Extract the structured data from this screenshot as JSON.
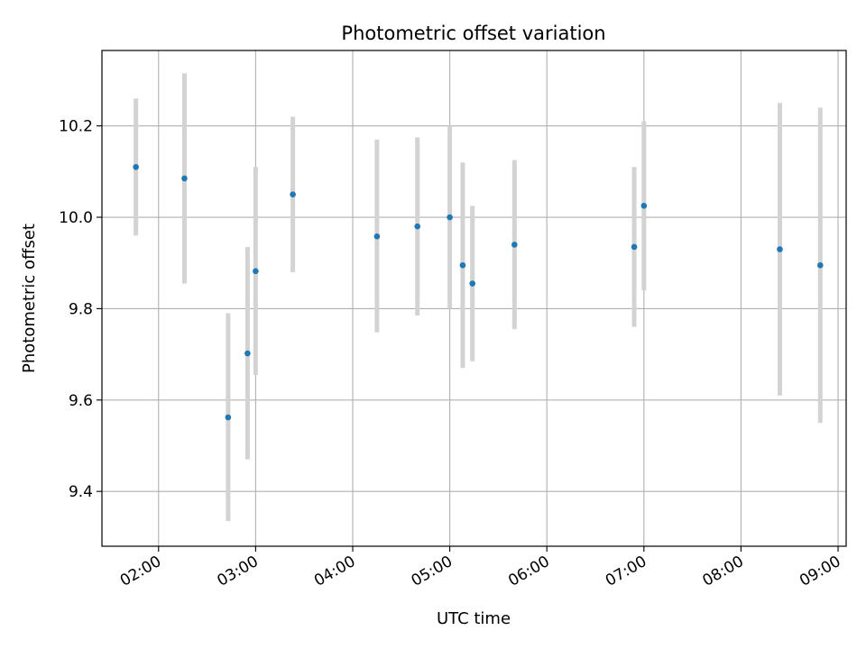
{
  "chart_data": {
    "type": "scatter",
    "title": "Photometric offset variation",
    "xlabel": "UTC time",
    "ylabel": "Photometric offset",
    "x_ticks": [
      "02:00",
      "03:00",
      "04:00",
      "05:00",
      "06:00",
      "07:00",
      "08:00",
      "09:00"
    ],
    "y_ticks": [
      "9.4",
      "9.6",
      "9.8",
      "10.0",
      "10.2"
    ],
    "xlim": [
      "01:25",
      "09:05"
    ],
    "ylim": [
      9.28,
      10.365
    ],
    "grid": true,
    "colors": {
      "marker": "#1f77b4",
      "errorbar": "#d3d3d3",
      "grid": "#b0b0b0"
    },
    "points": [
      {
        "time": "01:46",
        "y": 10.11,
        "err_low": 9.96,
        "err_high": 10.26
      },
      {
        "time": "02:16",
        "y": 10.085,
        "err_low": 9.855,
        "err_high": 10.315
      },
      {
        "time": "02:43",
        "y": 9.562,
        "err_low": 9.335,
        "err_high": 9.79
      },
      {
        "time": "02:55",
        "y": 9.702,
        "err_low": 9.47,
        "err_high": 9.935
      },
      {
        "time": "03:00",
        "y": 9.882,
        "err_low": 9.655,
        "err_high": 10.11
      },
      {
        "time": "03:23",
        "y": 10.05,
        "err_low": 9.88,
        "err_high": 10.22
      },
      {
        "time": "04:15",
        "y": 9.958,
        "err_low": 9.748,
        "err_high": 10.17
      },
      {
        "time": "04:40",
        "y": 9.98,
        "err_low": 9.785,
        "err_high": 10.175
      },
      {
        "time": "05:00",
        "y": 10.0,
        "err_low": 9.8,
        "err_high": 10.2
      },
      {
        "time": "05:08",
        "y": 9.895,
        "err_low": 9.67,
        "err_high": 10.12
      },
      {
        "time": "05:14",
        "y": 9.855,
        "err_low": 9.685,
        "err_high": 10.025
      },
      {
        "time": "05:40",
        "y": 9.94,
        "err_low": 9.755,
        "err_high": 10.125
      },
      {
        "time": "06:54",
        "y": 9.935,
        "err_low": 9.76,
        "err_high": 10.11
      },
      {
        "time": "07:00",
        "y": 10.025,
        "err_low": 9.84,
        "err_high": 10.21
      },
      {
        "time": "08:24",
        "y": 9.93,
        "err_low": 9.61,
        "err_high": 10.25
      },
      {
        "time": "08:49",
        "y": 9.895,
        "err_low": 9.55,
        "err_high": 10.24
      }
    ]
  }
}
